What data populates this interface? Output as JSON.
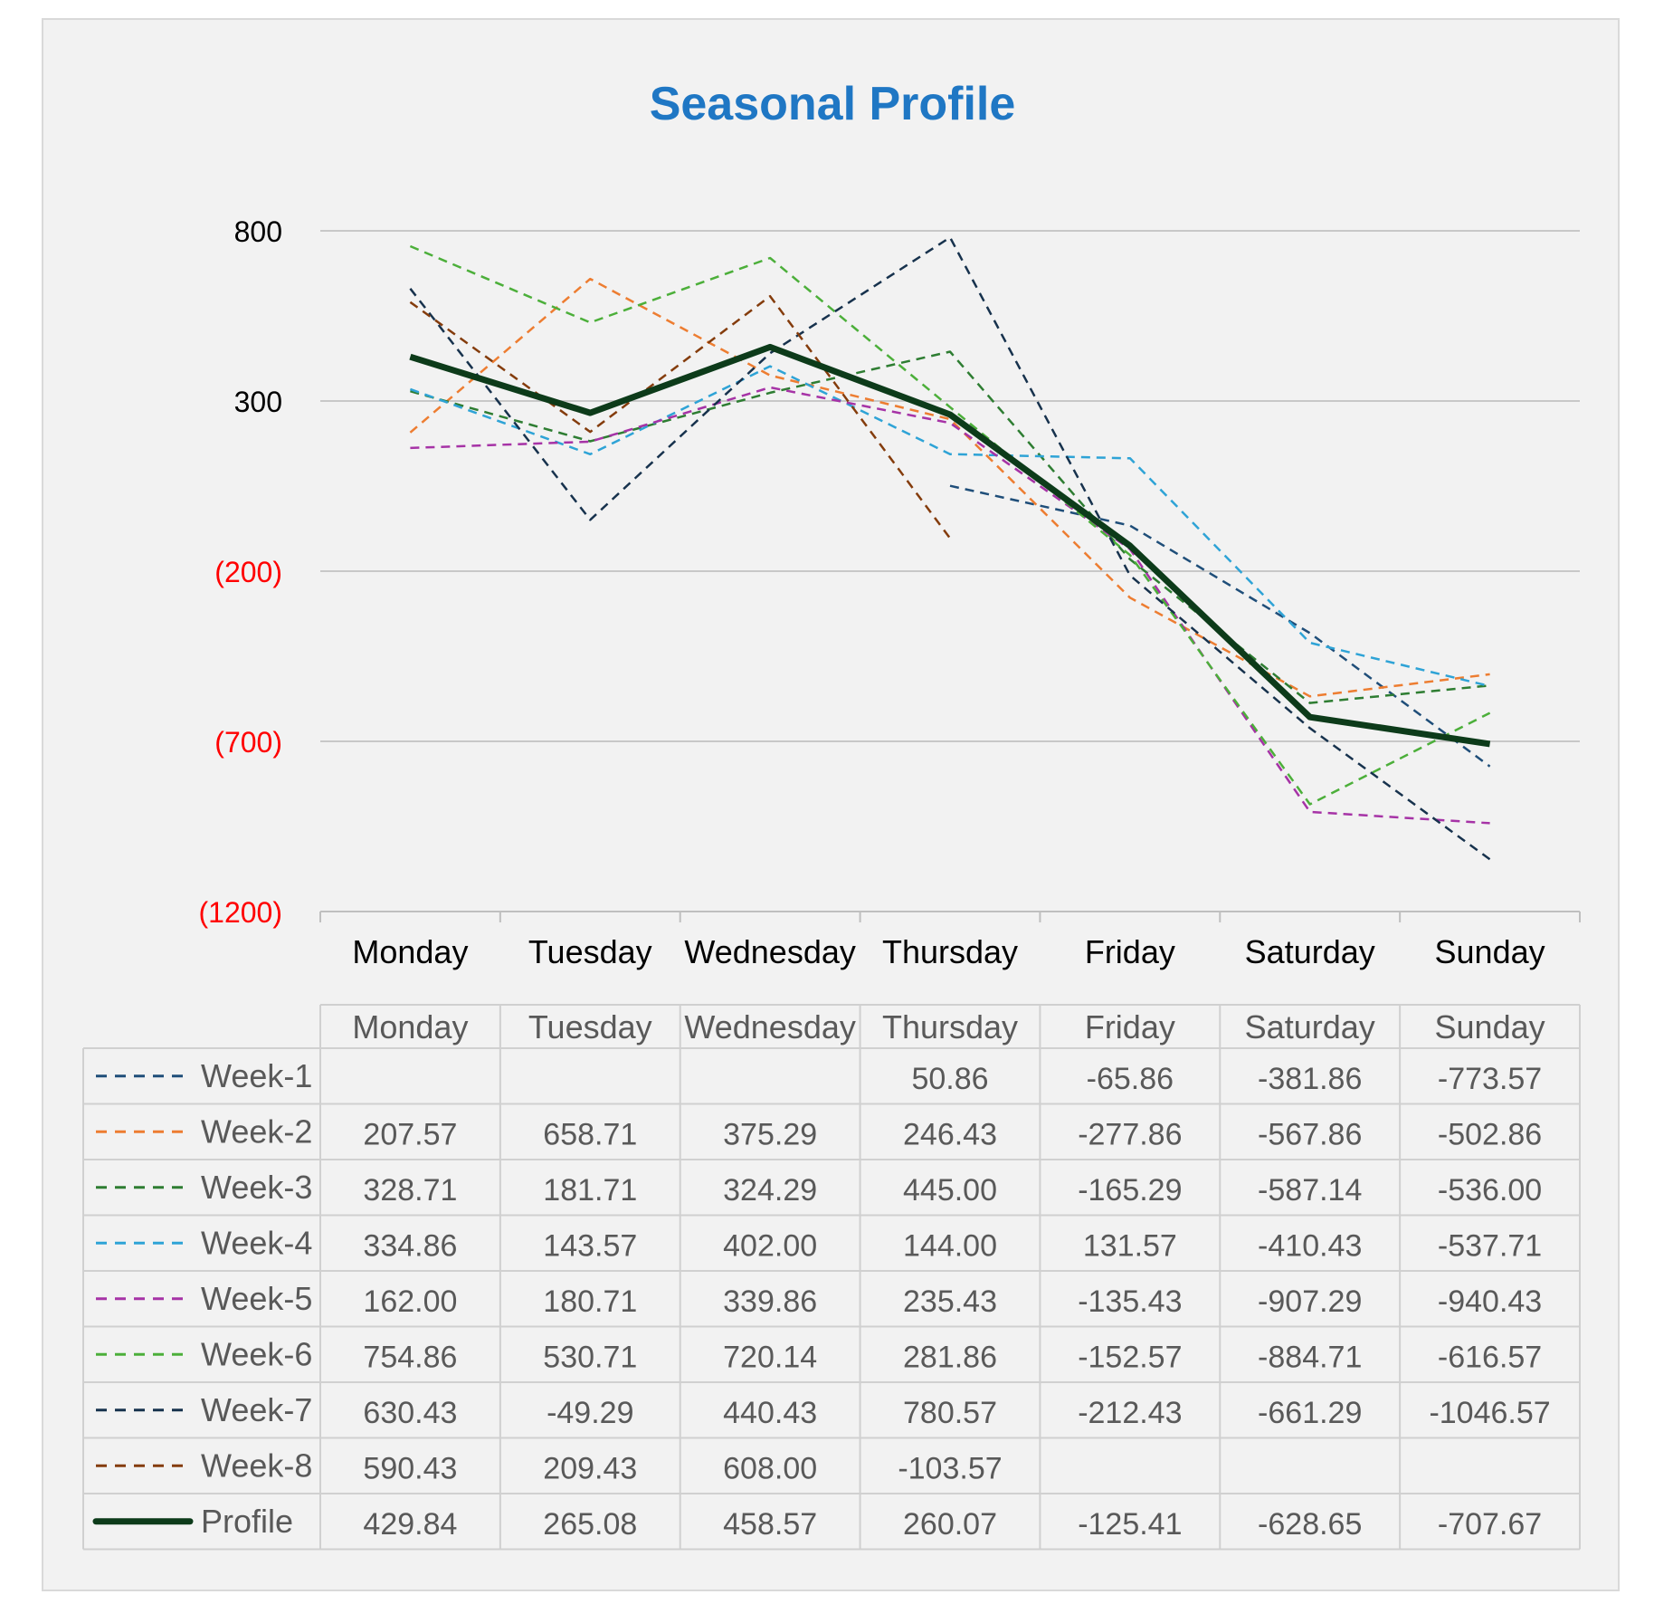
{
  "chart_data": {
    "type": "line",
    "title": "Seasonal Profile",
    "categories": [
      "Monday",
      "Tuesday",
      "Wednesday",
      "Thursday",
      "Friday",
      "Saturday",
      "Sunday"
    ],
    "ylim": [
      -1200,
      800
    ],
    "yticks": [
      {
        "value": 800,
        "label": "800",
        "color": "#000000"
      },
      {
        "value": 300,
        "label": "300",
        "color": "#000000"
      },
      {
        "value": -200,
        "label": "(200)",
        "color": "#ff0000"
      },
      {
        "value": -700,
        "label": "(700)",
        "color": "#ff0000"
      },
      {
        "value": -1200,
        "label": "(1200)",
        "color": "#ff0000"
      }
    ],
    "grid": true,
    "legend": "data-table",
    "series": [
      {
        "name": "Week-1",
        "color": "#1f4e79",
        "dash": true,
        "values": [
          null,
          null,
          null,
          50.86,
          -65.86,
          -381.86,
          -773.57
        ],
        "labels": [
          "",
          "",
          "",
          "50.86",
          "-65.86",
          "-381.86",
          "-773.57"
        ]
      },
      {
        "name": "Week-2",
        "color": "#ed7d31",
        "dash": true,
        "values": [
          207.57,
          658.71,
          375.29,
          246.43,
          -277.86,
          -567.86,
          -502.86
        ],
        "labels": [
          "207.57",
          "658.71",
          "375.29",
          "246.43",
          "-277.86",
          "-567.86",
          "-502.86"
        ]
      },
      {
        "name": "Week-3",
        "color": "#2e7d32",
        "dash": true,
        "values": [
          328.71,
          181.71,
          324.29,
          445.0,
          -165.29,
          -587.14,
          -536.0
        ],
        "labels": [
          "328.71",
          "181.71",
          "324.29",
          "445.00",
          "-165.29",
          "-587.14",
          "-536.00"
        ]
      },
      {
        "name": "Week-4",
        "color": "#2ea3d6",
        "dash": true,
        "values": [
          334.86,
          143.57,
          402.0,
          144.0,
          131.57,
          -410.43,
          -537.71
        ],
        "labels": [
          "334.86",
          "143.57",
          "402.00",
          "144.00",
          "131.57",
          "-410.43",
          "-537.71"
        ]
      },
      {
        "name": "Week-5",
        "color": "#a633a6",
        "dash": true,
        "values": [
          162.0,
          180.71,
          339.86,
          235.43,
          -135.43,
          -907.29,
          -940.43
        ],
        "labels": [
          "162.00",
          "180.71",
          "339.86",
          "235.43",
          "-135.43",
          "-907.29",
          "-940.43"
        ]
      },
      {
        "name": "Week-6",
        "color": "#4caf3a",
        "dash": true,
        "values": [
          754.86,
          530.71,
          720.14,
          281.86,
          -152.57,
          -884.71,
          -616.57
        ],
        "labels": [
          "754.86",
          "530.71",
          "720.14",
          "281.86",
          "-152.57",
          "-884.71",
          "-616.57"
        ]
      },
      {
        "name": "Week-7",
        "color": "#17324d",
        "dash": true,
        "values": [
          630.43,
          -49.29,
          440.43,
          780.57,
          -212.43,
          -661.29,
          -1046.57
        ],
        "labels": [
          "630.43",
          "-49.29",
          "440.43",
          "780.57",
          "-212.43",
          "-661.29",
          "-1046.57"
        ]
      },
      {
        "name": "Week-8",
        "color": "#843c0c",
        "dash": true,
        "values": [
          590.43,
          209.43,
          608.0,
          -103.57,
          null,
          null,
          null
        ],
        "labels": [
          "590.43",
          "209.43",
          "608.00",
          "-103.57",
          "",
          "",
          ""
        ]
      },
      {
        "name": "Profile",
        "color": "#0d3b1a",
        "dash": false,
        "values": [
          429.84,
          265.08,
          458.57,
          260.07,
          -125.41,
          -628.65,
          -707.67
        ],
        "labels": [
          "429.84",
          "265.08",
          "458.57",
          "260.07",
          "-125.41",
          "-628.65",
          "-707.67"
        ]
      }
    ]
  }
}
